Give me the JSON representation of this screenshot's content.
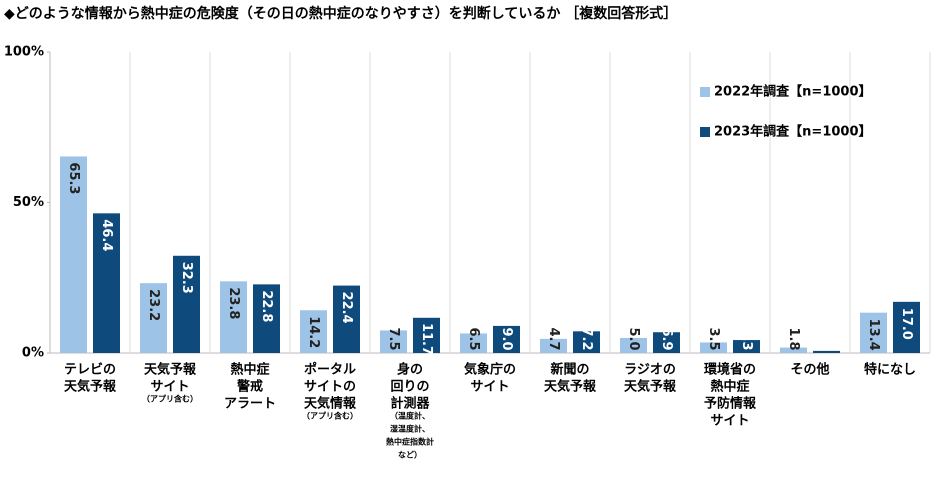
{
  "chart_data": {
    "type": "bar",
    "title": "◆どのような情報から熱中症の危険度（その日の熱中症のなりやすさ）を判断しているか ［複数回答形式］",
    "categories": [
      [
        "テレビの",
        "天気予報"
      ],
      [
        "天気予報",
        "サイト"
      ],
      [
        "熱中症",
        "警戒",
        "アラート"
      ],
      [
        "ポータル",
        "サイトの",
        "天気情報"
      ],
      [
        "身の",
        "回りの",
        "計測器"
      ],
      [
        "気象庁の",
        "サイト"
      ],
      [
        "新聞の",
        "天気予報"
      ],
      [
        "ラジオの",
        "天気予報"
      ],
      [
        "環境省の",
        "熱中症",
        "予防情報",
        "サイト"
      ],
      [
        "その他"
      ],
      [
        "特になし"
      ]
    ],
    "category_notes": [
      null,
      [
        "（アプリ含む）"
      ],
      null,
      [
        "（アプリ含む）"
      ],
      [
        "（温度計、",
        "湿温度計、",
        "熱中症指数計",
        "など）"
      ],
      null,
      null,
      null,
      null,
      null,
      null
    ],
    "series": [
      {
        "name": "2022年調査【n=1000】",
        "color": "#9dc3e6",
        "values": [
          65.3,
          23.2,
          23.8,
          14.2,
          7.5,
          6.5,
          4.7,
          5.0,
          3.5,
          1.8,
          13.4
        ],
        "value_labels": [
          "65.3",
          "23.2",
          "23.8",
          "14.2",
          "7.5",
          "6.5",
          "4.7",
          "5.0",
          "3.5",
          "1.8",
          "13.4"
        ]
      },
      {
        "name": "2023年調査【n=1000】",
        "color": "#0e4a7b",
        "values": [
          46.4,
          32.3,
          22.8,
          22.4,
          11.7,
          9.0,
          7.2,
          6.9,
          4.3,
          0.7,
          17.0
        ],
        "value_labels": [
          "46.4",
          "32.3",
          "22.8",
          "22.4",
          "11.7",
          "9.0",
          "7.2",
          "6.9",
          "4.3",
          "0.7",
          "17.0"
        ]
      }
    ],
    "ylim": [
      0,
      100
    ],
    "yticks": [
      {
        "value": 0,
        "label": "0%"
      },
      {
        "value": 50,
        "label": "50%"
      },
      {
        "value": 100,
        "label": "100%"
      }
    ],
    "legend": "upper right"
  }
}
